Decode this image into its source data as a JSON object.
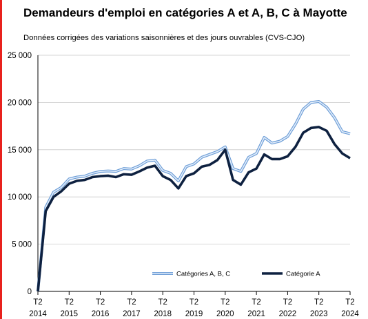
{
  "title": "Demandeurs d'emploi en catégories A et A, B, C à Mayotte",
  "subtitle": "Données corrigées des variations saisonnières et des jours ouvrables (CVS-CJO)",
  "colors": {
    "abc_outer": "#6e9ed7",
    "abc_inner": "#e3eefb",
    "cat_a": "#0e2140",
    "axis": "#000000",
    "accent_rule": "#e8211d"
  },
  "chart_data": {
    "type": "line",
    "title": "Demandeurs d'emploi en catégories A et A, B, C à Mayotte",
    "subtitle": "Données corrigées des variations saisonnières et des jours ouvrables (CVS-CJO)",
    "xlabel": "",
    "ylabel": "",
    "ylim": [
      0,
      25000
    ],
    "y_ticks": [
      0,
      5000,
      10000,
      15000,
      20000,
      25000
    ],
    "y_tick_labels": [
      "0",
      "5 000",
      "10 000",
      "15 000",
      "20 000",
      "25 000"
    ],
    "x_tick_labels": [
      {
        "quarter": "T2",
        "year": "2014"
      },
      {
        "quarter": "T2",
        "year": "2015"
      },
      {
        "quarter": "T2",
        "year": "2016"
      },
      {
        "quarter": "T2",
        "year": "2017"
      },
      {
        "quarter": "T2",
        "year": "2018"
      },
      {
        "quarter": "T2",
        "year": "2019"
      },
      {
        "quarter": "T2",
        "year": "2020"
      },
      {
        "quarter": "T2",
        "year": "2021"
      },
      {
        "quarter": "T2",
        "year": "2022"
      },
      {
        "quarter": "T2",
        "year": "2023"
      },
      {
        "quarter": "T2",
        "year": "2024"
      }
    ],
    "x_start": "2014 T2",
    "x_end": "2024 T2",
    "frequency": "quarterly",
    "grid": {
      "horizontal": true,
      "vertical": false
    },
    "legend_position": "bottom",
    "series": [
      {
        "name": "Catégories A, B, C",
        "style": "double-line",
        "values": [
          0,
          8900,
          10500,
          11000,
          11900,
          12100,
          12200,
          12500,
          12700,
          12750,
          12700,
          13000,
          12950,
          13300,
          13800,
          13900,
          12800,
          12500,
          11700,
          13200,
          13500,
          14200,
          14500,
          14800,
          15300,
          13000,
          12700,
          14200,
          14600,
          16300,
          15700,
          15900,
          16400,
          17700,
          19300,
          20000,
          20100,
          19500,
          18400,
          16900,
          16700
        ]
      },
      {
        "name": "Catégorie A",
        "style": "thick",
        "values": [
          0,
          8500,
          10000,
          10600,
          11400,
          11700,
          11800,
          12100,
          12200,
          12250,
          12100,
          12400,
          12350,
          12700,
          13100,
          13300,
          12200,
          11800,
          10900,
          12200,
          12500,
          13200,
          13400,
          13900,
          15000,
          11800,
          11300,
          12600,
          13000,
          14500,
          14000,
          14000,
          14300,
          15300,
          16800,
          17300,
          17400,
          17000,
          15600,
          14600,
          14100
        ]
      }
    ]
  }
}
